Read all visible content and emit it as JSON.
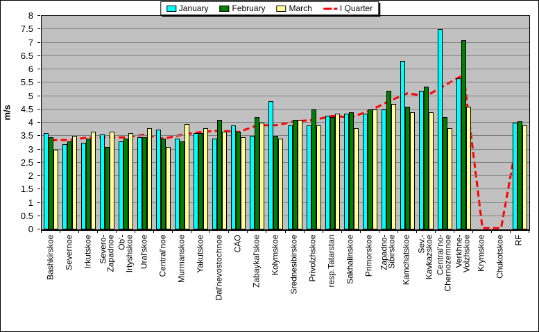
{
  "chart_data": {
    "type": "bar",
    "title": "",
    "xlabel": "",
    "ylabel": "m/s",
    "ylim": [
      0,
      8
    ],
    "ytick_step": 0.5,
    "grid": true,
    "legend_position": "top-center",
    "plot_background": "#C0C0C0",
    "grid_color": "#808080",
    "axis_color": "#000000",
    "categories": [
      "Bashkirskoe",
      "Severnoe",
      "Irkutskoe",
      "Severo-\nZapadnoe",
      "Ob'-\nIrtyshskoe",
      "Ural'skoe",
      "Central'noe",
      "Murmanskoe",
      "Yakutskoe",
      "Dal'nevostochnoe",
      "CAO",
      "Zabaykal'skoe",
      "Kolymskoe",
      "Srednesibirskoe",
      "Privolzhskoe",
      "resp.Tatarstan",
      "Sakhalinskoe",
      "Primorskoe",
      "Zapadno-\nSibirskoe",
      "Kamchatskoe",
      "Sev.-\nKavkazskoe",
      "Central'no-\nChernozemnoe",
      "Verkhne-\nVolzhskoe",
      "Krymskoe",
      "Chukotskoe",
      "RF"
    ],
    "series": [
      {
        "name": "January",
        "type": "bar",
        "color": "#00FFFF",
        "values": [
          3.6,
          3.2,
          3.25,
          3.55,
          3.3,
          3.45,
          3.75,
          3.4,
          3.6,
          3.4,
          3.9,
          3.5,
          4.8,
          3.9,
          3.9,
          4.25,
          4.35,
          4.35,
          4.5,
          6.3,
          5.2,
          7.5,
          5.65,
          0,
          0,
          4.0
        ]
      },
      {
        "name": "February",
        "type": "bar",
        "color": "#008000",
        "values": [
          3.45,
          3.3,
          3.4,
          3.1,
          3.4,
          3.45,
          3.4,
          3.3,
          3.6,
          4.1,
          3.65,
          4.2,
          3.5,
          4.1,
          4.5,
          4.2,
          4.4,
          4.5,
          5.2,
          4.6,
          5.35,
          4.2,
          7.1,
          0,
          0,
          4.05
        ]
      },
      {
        "name": "March",
        "type": "bar",
        "color": "#FFFF99",
        "values": [
          3.0,
          3.5,
          3.65,
          3.65,
          3.6,
          3.8,
          3.1,
          3.95,
          3.8,
          3.65,
          3.45,
          4.0,
          3.4,
          4.1,
          3.9,
          4.35,
          3.8,
          4.5,
          4.7,
          4.4,
          4.4,
          3.8,
          4.6,
          0,
          0,
          3.9
        ]
      },
      {
        "name": "I Quarter",
        "type": "line",
        "style": "dashed",
        "color": "#FF0000",
        "values": [
          3.35,
          3.35,
          3.45,
          3.45,
          3.45,
          3.55,
          3.4,
          3.55,
          3.65,
          3.7,
          3.65,
          3.9,
          3.9,
          4.05,
          4.1,
          4.25,
          4.2,
          4.45,
          4.8,
          5.1,
          5.0,
          5.4,
          5.8,
          0.05,
          0.05,
          3.95
        ]
      }
    ]
  }
}
